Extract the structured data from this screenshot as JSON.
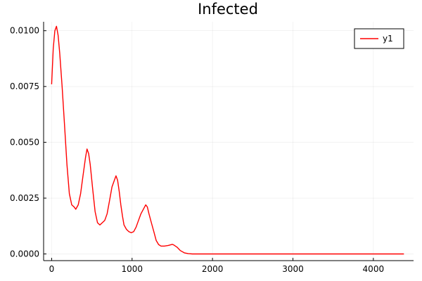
{
  "chart_data": {
    "type": "line",
    "title": "Infected",
    "xlabel": "",
    "ylabel": "",
    "xlim": [
      -100,
      4500
    ],
    "ylim": [
      -0.0003,
      0.0104
    ],
    "x_ticks": [
      0,
      1000,
      2000,
      3000,
      4000
    ],
    "x_tick_labels": [
      "0",
      "1000",
      "2000",
      "3000",
      "4000"
    ],
    "y_ticks": [
      0.0,
      0.0025,
      0.005,
      0.0075,
      0.01
    ],
    "y_tick_labels": [
      "0.0000",
      "0.0025",
      "0.0050",
      "0.0075",
      "0.0100"
    ],
    "grid": true,
    "legend_position": "top-right",
    "series": [
      {
        "name": "y1",
        "color": "#ff0000",
        "x": [
          0,
          20,
          40,
          60,
          80,
          100,
          130,
          160,
          190,
          220,
          250,
          280,
          300,
          330,
          360,
          390,
          420,
          440,
          460,
          480,
          510,
          540,
          570,
          600,
          630,
          660,
          690,
          720,
          750,
          780,
          800,
          820,
          840,
          860,
          880,
          900,
          930,
          960,
          990,
          1020,
          1050,
          1080,
          1110,
          1140,
          1170,
          1190,
          1210,
          1240,
          1270,
          1300,
          1330,
          1360,
          1400,
          1450,
          1500,
          1520,
          1560,
          1600,
          1650,
          1700,
          1750,
          1800,
          2000,
          2500,
          3000,
          3500,
          4000,
          4380
        ],
        "values": [
          0.0076,
          0.0092,
          0.01,
          0.0102,
          0.0098,
          0.009,
          0.0075,
          0.0058,
          0.004,
          0.0027,
          0.0022,
          0.0021,
          0.002,
          0.0022,
          0.0027,
          0.0035,
          0.0043,
          0.0047,
          0.0045,
          0.004,
          0.0029,
          0.0019,
          0.0014,
          0.0013,
          0.0014,
          0.0015,
          0.0018,
          0.0024,
          0.003,
          0.0033,
          0.0035,
          0.0033,
          0.0028,
          0.0022,
          0.0017,
          0.0013,
          0.0011,
          0.001,
          0.00095,
          0.001,
          0.0012,
          0.0015,
          0.0018,
          0.002,
          0.0022,
          0.0021,
          0.0018,
          0.0014,
          0.001,
          0.0006,
          0.00042,
          0.00035,
          0.00035,
          0.00038,
          0.00043,
          0.0004,
          0.0003,
          0.00015,
          5e-05,
          1e-05,
          0.0,
          0.0,
          0.0,
          0.0,
          0.0,
          0.0,
          0.0,
          0.0
        ]
      }
    ]
  }
}
